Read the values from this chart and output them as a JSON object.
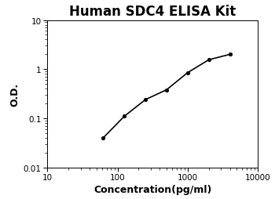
{
  "title": "Human SDC4 ELISA Kit",
  "xlabel": "Concentration(pg/ml)",
  "ylabel": "O.D.",
  "x_data": [
    62.5,
    125,
    250,
    500,
    1000,
    2000,
    4000
  ],
  "y_data": [
    0.04,
    0.11,
    0.24,
    0.38,
    0.85,
    1.55,
    2.0
  ],
  "xlim": [
    10,
    10000
  ],
  "ylim": [
    0.01,
    10
  ],
  "x_fit_start": 50,
  "x_fit_end": 5500,
  "line_color": "#000000",
  "dot_color": "#000000",
  "background_color": "#ffffff",
  "title_fontsize": 12,
  "label_fontsize": 9,
  "tick_fontsize": 7.5,
  "xticks": [
    10,
    100,
    1000,
    10000
  ],
  "xtick_labels": [
    "10",
    "100",
    "1000",
    "10000"
  ],
  "yticks": [
    0.01,
    0.1,
    1,
    10
  ],
  "ytick_labels": [
    "0.01",
    "0.1",
    "1",
    "10"
  ]
}
